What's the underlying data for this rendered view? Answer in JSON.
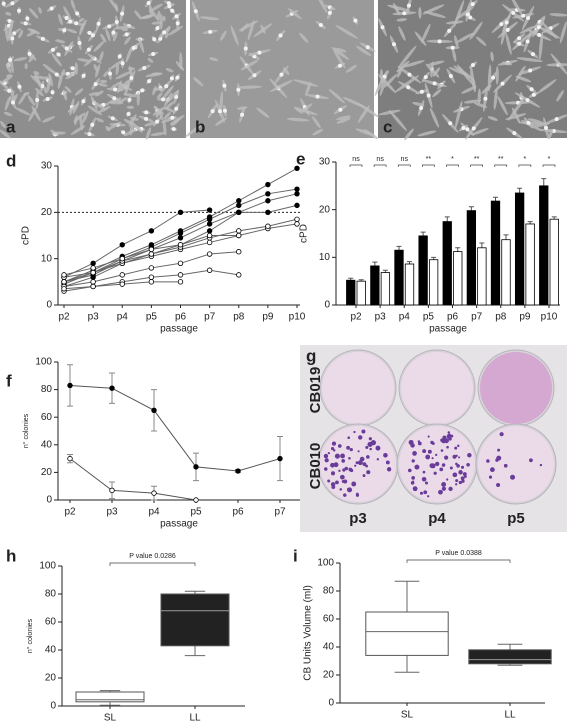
{
  "panels": [
    "a",
    "b",
    "c",
    "d",
    "e",
    "f",
    "g",
    "h",
    "i"
  ],
  "plate_image": {
    "rows": [
      "CB019",
      "CB010"
    ],
    "cols": [
      "p3",
      "p4",
      "p5"
    ]
  },
  "chart_data": [
    {
      "type": "line",
      "y_label": "cPD",
      "x_label": "passage",
      "categories": [
        "p2",
        "p3",
        "p4",
        "p5",
        "p6",
        "p7",
        "p8",
        "p9",
        "p10"
      ],
      "ylim": [
        0,
        30
      ],
      "yticks": [
        0,
        10,
        20,
        30
      ],
      "reference_line": 20,
      "line_color": "#666666",
      "series": [
        {
          "color": "#000000",
          "values": [
            5,
            7.5,
            10.5,
            13,
            16,
            19,
            22.5,
            26,
            29.5
          ]
        },
        {
          "color": "#000000",
          "values": [
            4.5,
            7,
            10,
            12.5,
            15.5,
            18.5,
            21.5,
            24,
            25
          ]
        },
        {
          "color": "#000000",
          "values": [
            5,
            6.5,
            9.5,
            12,
            14.5,
            17.5,
            20,
            22.5,
            24
          ]
        },
        {
          "color": "#000000",
          "values": [
            6,
            9,
            13,
            16,
            20,
            20.5,
            null,
            null,
            null
          ]
        },
        {
          "color": "#000000",
          "values": [
            4,
            6,
            9,
            11,
            13,
            16,
            20,
            20,
            21.5
          ]
        },
        {
          "color": "#ffffff",
          "values": [
            6,
            7,
            9,
            10.5,
            12,
            13.5,
            15,
            16.5,
            17.5
          ]
        },
        {
          "color": "#ffffff",
          "values": [
            5,
            7,
            9.5,
            11,
            12.5,
            14.5,
            16,
            17,
            18.5
          ]
        },
        {
          "color": "#ffffff",
          "values": [
            6.5,
            8,
            10,
            12,
            13,
            15,
            15,
            null,
            null
          ]
        },
        {
          "color": "#ffffff",
          "values": [
            4,
            5,
            6.5,
            8,
            9,
            11,
            11.5,
            null,
            null
          ]
        },
        {
          "color": "#ffffff",
          "values": [
            3,
            4,
            5,
            6,
            6.5,
            7.5,
            6.5,
            null,
            null
          ]
        },
        {
          "color": "#ffffff",
          "values": [
            3.5,
            4,
            4.5,
            5,
            5,
            null,
            null,
            null,
            null
          ]
        }
      ]
    },
    {
      "type": "bar",
      "y_label": "cPD",
      "x_label": "passage",
      "categories": [
        "p2",
        "p3",
        "p4",
        "p5",
        "p6",
        "p7",
        "p8",
        "p9",
        "p10"
      ],
      "ylim": [
        0,
        30
      ],
      "yticks": [
        0,
        10,
        20,
        30
      ],
      "significance": [
        "ns",
        "ns",
        "ns",
        "**",
        "*",
        "**",
        "**",
        "*",
        "*"
      ],
      "series": [
        {
          "color": "#000000",
          "values": [
            5.2,
            8.2,
            11.5,
            14.5,
            17.5,
            19.8,
            21.8,
            23.5,
            25
          ],
          "errors": [
            0.4,
            0.8,
            0.8,
            0.8,
            1,
            0.8,
            0.8,
            1,
            1.5
          ]
        },
        {
          "color": "#ffffff",
          "values": [
            5,
            6.8,
            8.6,
            9.5,
            11.2,
            12,
            13.7,
            17,
            18
          ],
          "errors": [
            0.3,
            0.5,
            0.5,
            0.5,
            0.8,
            1,
            1,
            0.5,
            0.5
          ]
        }
      ]
    },
    {
      "type": "line",
      "y_label": "n° colonies",
      "x_label": "passage",
      "categories": [
        "p2",
        "p3",
        "p4",
        "p5",
        "p6",
        "p7"
      ],
      "ylim": [
        0,
        100
      ],
      "yticks": [
        0,
        20,
        40,
        60,
        80,
        100
      ],
      "line_color": "#555555",
      "series": [
        {
          "color": "#000000",
          "values": [
            83,
            81,
            65,
            24,
            21,
            30
          ],
          "errors": [
            15,
            11,
            15,
            10,
            1,
            16
          ]
        },
        {
          "color": "#ffffff",
          "values": [
            30,
            7,
            5,
            0,
            null,
            null
          ],
          "errors": [
            3,
            6,
            5,
            0,
            null,
            null
          ]
        }
      ]
    },
    {
      "type": "box",
      "y_label": "n° colonies",
      "annotation": "P value  0.0286",
      "categories": [
        "SL",
        "LL"
      ],
      "ylim": [
        0,
        100
      ],
      "yticks": [
        0,
        20,
        40,
        60,
        80,
        100
      ],
      "boxes": [
        {
          "color": "#ffffff",
          "min": 0.5,
          "q1": 3,
          "median": 4.5,
          "q3": 10,
          "max": 11
        },
        {
          "color": "#222222",
          "min": 36,
          "q1": 43,
          "median": 68,
          "q3": 80,
          "max": 82
        }
      ]
    },
    {
      "type": "box",
      "y_label": "CB Units Volume (ml)",
      "annotation": "P value  0.0388",
      "categories": [
        "SL",
        "LL"
      ],
      "ylim": [
        0,
        100
      ],
      "yticks": [
        0,
        20,
        40,
        60,
        80,
        100
      ],
      "boxes": [
        {
          "color": "#ffffff",
          "min": 22,
          "q1": 34,
          "median": 51,
          "q3": 65,
          "max": 87
        },
        {
          "color": "#222222",
          "min": 27,
          "q1": 28,
          "median": 31,
          "q3": 38,
          "max": 42
        }
      ]
    }
  ]
}
